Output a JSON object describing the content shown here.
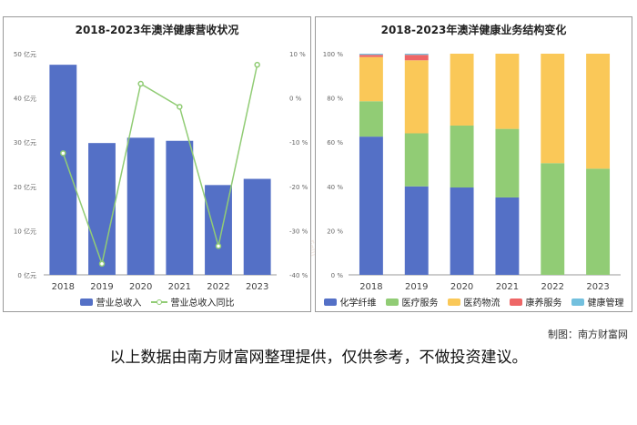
{
  "watermark": "南方财富网",
  "footer": {
    "credit": "制图：南方财富网",
    "disclaimer": "以上数据由南方财富网整理提供，仅供参考，不做投资建议。"
  },
  "colors": {
    "bar": "#5470c6",
    "line": "#91cc75",
    "fiber": "#5470c6",
    "medical": "#91cc75",
    "pharma": "#fac858",
    "elderly": "#ee6666",
    "health": "#73c0de"
  },
  "chart_data": [
    {
      "type": "bar",
      "title": "2018-2023年澳洋健康营收状况",
      "categories": [
        "2018",
        "2019",
        "2020",
        "2021",
        "2022",
        "2023"
      ],
      "left_axis": {
        "ticks": [
          "50 亿元",
          "40 亿元",
          "30 亿元",
          "20 亿元",
          "10 亿元",
          "0 亿元"
        ],
        "ylim": [
          0,
          50
        ]
      },
      "right_axis": {
        "ticks": [
          "10 %",
          "0 %",
          "-10 %",
          "-20 %",
          "-30 %",
          "-40 %"
        ],
        "ylim": [
          -40,
          10
        ]
      },
      "series": [
        {
          "name": "营业总收入",
          "type": "bar",
          "values": [
            47.5,
            29.8,
            31.0,
            30.3,
            20.3,
            21.7
          ]
        },
        {
          "name": "营业总收入同比",
          "type": "line",
          "values": [
            -12.5,
            -37.5,
            3.2,
            -2,
            -33.5,
            7.5
          ]
        }
      ],
      "grid": false,
      "legend_position": "bottom"
    },
    {
      "type": "bar",
      "stacked": true,
      "title": "2018-2023年澳洋健康业务结构变化",
      "categories": [
        "2018",
        "2019",
        "2020",
        "2021",
        "2022",
        "2023"
      ],
      "y_ticks": [
        "100 %",
        "80 %",
        "60 %",
        "40 %",
        "20 %",
        "0 %"
      ],
      "ylim": [
        0,
        100
      ],
      "series": [
        {
          "name": "化学纤维",
          "values": [
            62.5,
            40,
            39.5,
            35,
            0,
            0
          ]
        },
        {
          "name": "医疗服务",
          "values": [
            16,
            24,
            28,
            31,
            50.5,
            48
          ]
        },
        {
          "name": "医药物流",
          "values": [
            20,
            33,
            32.5,
            34,
            49.5,
            52
          ]
        },
        {
          "name": "康养服务",
          "values": [
            1,
            2.5,
            0,
            0,
            0,
            0
          ]
        },
        {
          "name": "健康管理",
          "values": [
            0.5,
            0.5,
            0,
            0,
            0,
            0
          ]
        }
      ],
      "grid": false,
      "legend_position": "bottom"
    }
  ]
}
